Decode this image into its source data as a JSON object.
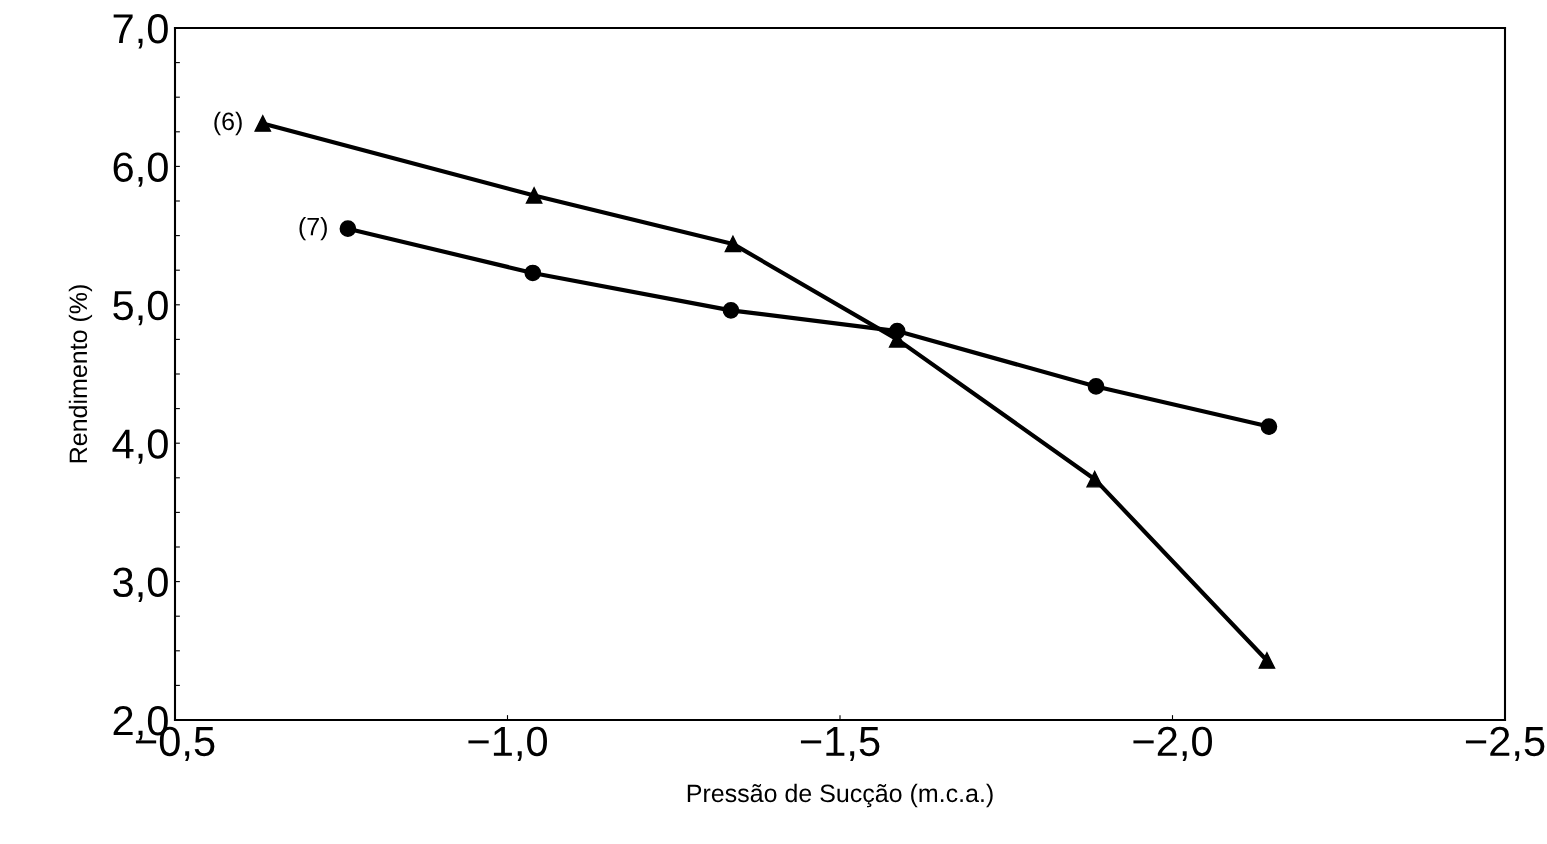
{
  "chart_data": {
    "type": "line",
    "xlabel": "Pressão de Sucção (m.c.a.)",
    "ylabel": "Rendimento (%)",
    "series": [
      {
        "color": "#000000",
        "marker": "triangle",
        "x": [
          -0.632,
          -1.04,
          -1.339,
          -1.586,
          -1.883,
          -2.142
        ],
        "values": [
          6.31,
          5.79,
          5.44,
          4.75,
          3.74,
          2.43
        ]
      },
      {
        "color": "#000000",
        "marker": "circle",
        "x": [
          -0.76,
          -1.038,
          -1.336,
          -1.586,
          -1.885,
          -2.145
        ],
        "values": [
          5.55,
          5.23,
          4.96,
          4.81,
          4.41,
          4.12
        ]
      }
    ],
    "annotations": [
      {
        "text": "(6)",
        "x": -0.632,
        "y": 6.31
      },
      {
        "text": "(7)",
        "x": -0.76,
        "y": 5.55
      }
    ],
    "xlim": [
      -0.5,
      -2.5
    ],
    "xticks": [
      {
        "value": -0.5,
        "label": "−0,5"
      },
      {
        "value": -1.0,
        "label": "−1,0"
      },
      {
        "value": -1.5,
        "label": "−1,5"
      },
      {
        "value": -2.0,
        "label": "−2,0"
      },
      {
        "value": -2.5,
        "label": "−2,5"
      }
    ],
    "ylim": [
      2.0,
      7.0
    ],
    "yticks": [
      {
        "value": 2.0,
        "label": "2,0"
      },
      {
        "value": 2.25,
        "label": null
      },
      {
        "value": 2.5,
        "label": null
      },
      {
        "value": 2.75,
        "label": null
      },
      {
        "value": 3.0,
        "label": "3,0"
      },
      {
        "value": 3.25,
        "label": null
      },
      {
        "value": 3.5,
        "label": null
      },
      {
        "value": 3.75,
        "label": null
      },
      {
        "value": 4.0,
        "label": "4,0"
      },
      {
        "value": 4.25,
        "label": null
      },
      {
        "value": 4.5,
        "label": null
      },
      {
        "value": 4.75,
        "label": null
      },
      {
        "value": 5.0,
        "label": "5,0"
      },
      {
        "value": 5.25,
        "label": null
      },
      {
        "value": 5.5,
        "label": null
      },
      {
        "value": 5.75,
        "label": null
      },
      {
        "value": 6.0,
        "label": "6,0"
      },
      {
        "value": 6.25,
        "label": null
      },
      {
        "value": 6.5,
        "label": null
      },
      {
        "value": 6.75,
        "label": null
      },
      {
        "value": 7.0,
        "label": "7,0"
      }
    ],
    "grid": false,
    "legend": false,
    "line_style": "solid"
  }
}
